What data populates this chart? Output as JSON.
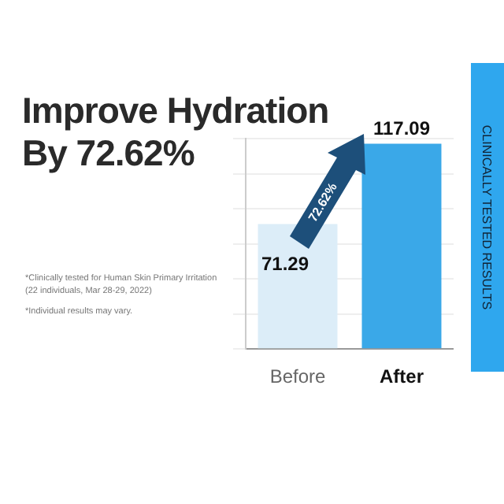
{
  "chart_data": {
    "type": "bar",
    "title": "Improve Hydration\nBy 72.62%",
    "categories": [
      "Before",
      "After"
    ],
    "values": [
      71.29,
      117.09
    ],
    "colors": [
      "#dcedf8",
      "#3aa8e8"
    ],
    "data_labels": true,
    "grid": "y",
    "tick_labels": "x",
    "annotations": [
      "72.62%",
      "*Clinically tested for Human Skin Primary Irritation (22 individuals, Mar 28-29, 2022)",
      "*Individual results may vary.",
      "CLINICALLY TESTED RESULTS"
    ]
  }
}
